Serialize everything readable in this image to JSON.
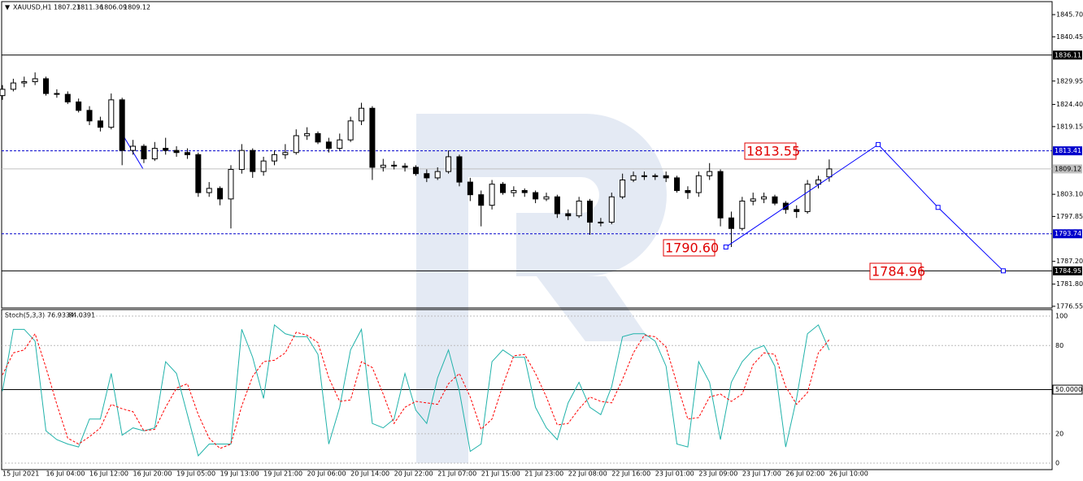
{
  "chart_data": [
    {
      "type": "candlestick",
      "title": "XAUUSD,H1",
      "categories": [
        "15 Jul 2021",
        null,
        null,
        null,
        "16 Jul 04:00",
        null,
        null,
        null,
        "16 Jul 12:00",
        null,
        null,
        null,
        "16 Jul 20:00",
        null,
        null,
        null,
        "19 Jul 05:00",
        null,
        null,
        null,
        "19 Jul 13:00",
        null,
        null,
        null,
        "19 Jul 21:00",
        null,
        null,
        null,
        "20 Jul 06:00",
        null,
        null,
        null,
        "20 Jul 14:00",
        null,
        null,
        null,
        "20 Jul 22:00",
        null,
        null,
        null,
        "21 Jul 07:00",
        null,
        null,
        null,
        "21 Jul 15:00",
        null,
        null,
        null,
        "21 Jul 23:00",
        null,
        null,
        null,
        "22 Jul 08:00",
        null,
        null,
        null,
        "22 Jul 16:00",
        null,
        null,
        null,
        "23 Jul 01:00",
        null,
        null,
        null,
        "23 Jul 09:00",
        null,
        null,
        null,
        "23 Jul 17:00",
        null,
        null,
        null,
        "26 Jul 02:00",
        null,
        null,
        null,
        "26 Jul 10:00"
      ],
      "open": [
        1826.5,
        1828.0,
        1829.5,
        1829.8,
        1830.5,
        1827.0,
        1826.8,
        1825.0,
        1823.0,
        1820.5,
        1819.0,
        1825.5,
        1813.5,
        1814.5,
        1811.5,
        1814.0,
        1813.5,
        1813.0,
        1812.5,
        1803.5,
        1804.5,
        1802.0,
        1809.0,
        1813.5,
        1808.5,
        1811.0,
        1812.5,
        1813.0,
        1817.0,
        1817.5,
        1815.5,
        1814.0,
        1816.0,
        1820.5,
        1823.5,
        1809.5,
        1810.0,
        1809.8,
        1809.5,
        1808.0,
        1807.0,
        1808.5,
        1812.0,
        1806.0,
        1803.0,
        1800.5,
        1805.5,
        1803.5,
        1804.0,
        1803.5,
        1802.0,
        1802.5,
        1798.5,
        1798.0,
        1801.5,
        1796.5,
        1796.5,
        1802.5,
        1806.5,
        1807.5,
        1807.5,
        1807.5,
        1807.0,
        1804.0,
        1803.5,
        1807.5,
        1808.5,
        1797.5,
        1795.0,
        1801.5,
        1802.0,
        1802.5,
        1801.0,
        1799.5,
        1799.0,
        1805.5,
        1807.23
      ],
      "high": [
        1829.0,
        1830.5,
        1831.0,
        1832.0,
        1831.0,
        1828.0,
        1827.5,
        1825.8,
        1824.0,
        1821.5,
        1827.0,
        1826.0,
        1816.0,
        1815.0,
        1815.5,
        1816.5,
        1814.5,
        1814.0,
        1813.0,
        1806.0,
        1805.0,
        1810.0,
        1815.0,
        1814.0,
        1812.0,
        1813.5,
        1815.0,
        1818.5,
        1819.0,
        1818.0,
        1816.5,
        1817.5,
        1821.5,
        1824.8,
        1824.0,
        1811.5,
        1811.0,
        1810.5,
        1810.0,
        1809.0,
        1809.5,
        1813.5,
        1812.5,
        1807.0,
        1804.0,
        1806.5,
        1806.0,
        1805.0,
        1804.5,
        1804.0,
        1803.5,
        1803.0,
        1799.5,
        1802.5,
        1802.0,
        1797.5,
        1803.5,
        1808.0,
        1808.5,
        1808.5,
        1808.0,
        1808.5,
        1807.5,
        1805.0,
        1808.5,
        1810.5,
        1809.0,
        1799.0,
        1802.5,
        1803.5,
        1803.5,
        1803.0,
        1801.5,
        1800.5,
        1806.5,
        1807.5,
        1811.36
      ],
      "low": [
        1825.5,
        1827.5,
        1828.5,
        1829.0,
        1826.5,
        1826.0,
        1824.5,
        1822.5,
        1819.5,
        1818.0,
        1818.5,
        1810.0,
        1812.5,
        1810.5,
        1811.0,
        1812.5,
        1812.0,
        1811.5,
        1802.5,
        1802.5,
        1800.5,
        1795.0,
        1808.0,
        1807.0,
        1807.5,
        1810.0,
        1811.5,
        1812.5,
        1816.0,
        1815.0,
        1813.0,
        1813.5,
        1815.5,
        1819.5,
        1806.5,
        1808.5,
        1809.0,
        1808.5,
        1807.5,
        1806.0,
        1806.5,
        1808.0,
        1805.0,
        1801.5,
        1795.5,
        1799.5,
        1803.0,
        1802.5,
        1802.5,
        1801.0,
        1801.5,
        1797.5,
        1797.0,
        1797.5,
        1793.5,
        1795.5,
        1796.0,
        1802.0,
        1806.0,
        1806.5,
        1806.5,
        1806.0,
        1803.5,
        1802.0,
        1802.5,
        1806.5,
        1795.5,
        1790.6,
        1794.5,
        1800.5,
        1801.0,
        1800.5,
        1798.5,
        1797.5,
        1798.5,
        1804.5,
        1806.09
      ],
      "close": [
        1828.0,
        1829.5,
        1829.8,
        1830.5,
        1827.0,
        1826.8,
        1825.0,
        1823.0,
        1820.5,
        1819.0,
        1825.5,
        1813.5,
        1814.5,
        1811.5,
        1814.0,
        1813.5,
        1813.0,
        1812.5,
        1803.5,
        1804.5,
        1802.0,
        1809.0,
        1813.5,
        1808.5,
        1811.0,
        1812.5,
        1813.0,
        1817.0,
        1817.5,
        1815.5,
        1814.0,
        1816.0,
        1820.5,
        1823.5,
        1809.5,
        1810.0,
        1809.8,
        1809.5,
        1808.0,
        1807.0,
        1808.5,
        1812.0,
        1806.0,
        1803.0,
        1800.5,
        1805.5,
        1803.5,
        1804.0,
        1803.5,
        1802.0,
        1802.5,
        1798.5,
        1798.0,
        1801.5,
        1796.5,
        1796.5,
        1802.5,
        1806.5,
        1807.5,
        1807.5,
        1807.5,
        1807.0,
        1804.0,
        1803.5,
        1807.5,
        1808.5,
        1797.5,
        1795.0,
        1801.5,
        1802.0,
        1802.5,
        1801.0,
        1799.5,
        1799.0,
        1805.5,
        1806.5,
        1809.12
      ],
      "ylim": [
        1776.16,
        1848.59
      ],
      "yticks": [
        {
          "value": 1845.7,
          "label": "1845.70"
        },
        1840.45,
        1829.95,
        {
          "value": 1824.4,
          "label": "1824.40"
        },
        1819.15,
        {
          "value": 1803.1,
          "label": "1803.10"
        },
        1797.85,
        {
          "value": 1787.2,
          "label": "1787.20"
        },
        {
          "value": 1781.8,
          "label": "1781.80"
        },
        1776.55
      ],
      "levels": [
        {
          "value": 1836.11,
          "style": "solid",
          "color": "#000000"
        },
        {
          "value": 1813.41,
          "style": "dashed",
          "color": "#0000cc"
        },
        {
          "value": 1809.12,
          "style": "solid",
          "color": "#c0c0c0"
        },
        {
          "value": 1793.74,
          "style": "dashed",
          "color": "#0000cc"
        },
        {
          "value": 1784.95,
          "style": "solid",
          "color": "#000000"
        }
      ],
      "forecast": {
        "x": [
          66.5,
          80.5,
          86,
          92
        ],
        "values": [
          1790.6,
          1814.9,
          1800.0,
          1784.96
        ],
        "color": "#0000ff"
      },
      "annotations": [
        "1813.55",
        "1790.60",
        "1784.96"
      ]
    },
    {
      "type": "line",
      "title": "Stoch(5,3,3)",
      "series": [
        {
          "color": "#20b2aa",
          "style": "solid",
          "values": [
            49,
            91,
            91,
            83,
            22,
            16,
            13,
            11,
            30,
            30,
            61,
            19,
            24,
            22,
            24,
            69,
            61,
            33,
            5,
            13,
            13,
            13,
            91,
            72,
            44,
            94,
            88,
            86,
            86,
            74,
            13,
            38,
            77,
            91,
            27,
            24,
            30,
            61,
            36,
            27,
            58,
            77,
            49,
            8,
            13,
            69,
            77,
            72,
            72,
            38,
            24,
            16,
            41,
            55,
            38,
            33,
            52,
            86,
            88,
            88,
            83,
            66,
            13,
            11,
            69,
            55,
            16,
            55,
            69,
            77,
            80,
            66,
            11,
            44,
            88,
            94,
            76.9334
          ]
        },
        {
          "color": "#ff0000",
          "style": "dashed",
          "values": [
            60,
            75,
            77,
            88,
            65,
            40,
            17,
            13,
            18,
            24,
            40,
            37,
            35,
            22,
            23,
            38,
            51,
            54,
            33,
            17,
            10,
            13,
            39,
            59,
            69,
            70,
            75,
            89,
            87,
            82,
            58,
            42,
            43,
            69,
            65,
            47,
            27,
            38,
            42,
            41,
            40,
            54,
            61,
            45,
            23,
            30,
            53,
            73,
            74,
            61,
            45,
            26,
            27,
            37,
            45,
            42,
            41,
            57,
            75,
            87,
            86,
            79,
            54,
            30,
            31,
            45,
            47,
            42,
            47,
            67,
            75,
            74,
            52,
            40,
            48,
            75,
            84.0391
          ]
        }
      ],
      "ylim": [
        -4.4,
        103.9
      ],
      "yticks": [
        100,
        80,
        {
          "value": 50,
          "label": "50.0000"
        },
        20,
        0
      ]
    }
  ]
}
